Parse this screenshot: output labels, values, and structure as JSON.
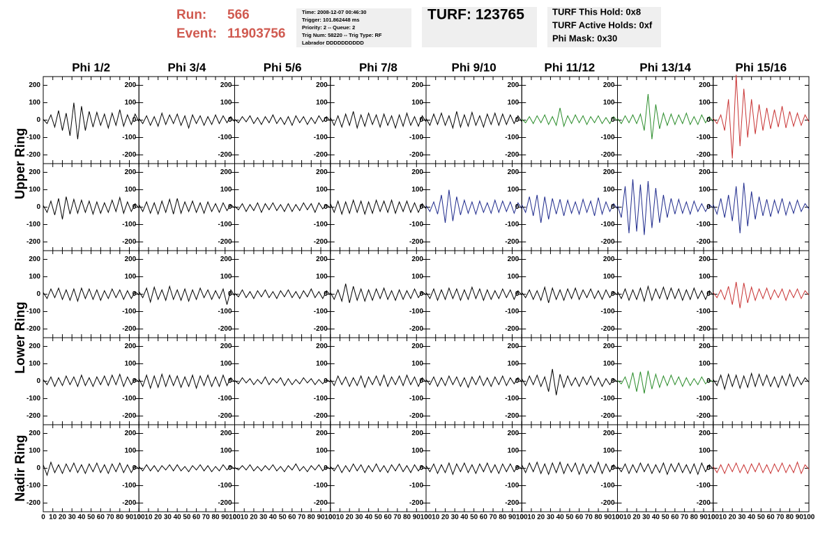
{
  "header": {
    "run_label": "Run:",
    "run": "566",
    "event_label": "Event:",
    "event": "11903756",
    "info": [
      "Time: 2008-12-07 00:46:30",
      "Trigger: 101.862448 ms",
      "Priority: 2 -- Queue: 2",
      "Trig Num: 58220 -- Trig Type: RF",
      "Labrador DDDDDDDDDD"
    ],
    "turf": "TURF: 123765",
    "holds": [
      "TURF This Hold: 0x8",
      "TURF Active Holds: 0xf",
      "Phi Mask: 0x30"
    ]
  },
  "columns": [
    "Phi 1/2",
    "Phi 3/4",
    "Phi 5/6",
    "Phi 7/8",
    "Phi 9/10",
    "Phi 11/12",
    "Phi 13/14",
    "Phi 15/16"
  ],
  "rows": [
    "Upper Ring",
    "Lower Ring",
    "Nadir Ring"
  ],
  "axis": {
    "xlim": [
      0,
      100
    ],
    "ylim": [
      -250,
      250
    ],
    "xticks": [
      0,
      10,
      20,
      30,
      40,
      50,
      60,
      70,
      80,
      90,
      100
    ],
    "yticks": [
      -200,
      -100,
      0,
      100,
      200
    ],
    "x": [
      0,
      4,
      8,
      12,
      16,
      20,
      24,
      28,
      32,
      36,
      40,
      44,
      48,
      52,
      56,
      60,
      64,
      68,
      72,
      76,
      80,
      84,
      88,
      92,
      96,
      100
    ]
  },
  "panels": [
    [
      {
        "color": "#000000",
        "values": [
          5,
          -20,
          30,
          -40,
          55,
          -60,
          40,
          -90,
          100,
          -110,
          80,
          -60,
          50,
          -40,
          45,
          -30,
          35,
          -45,
          40,
          -30,
          60,
          -35,
          30,
          -25,
          35,
          -10
        ]
      },
      {
        "color": "#000000",
        "values": [
          10,
          -20,
          25,
          -30,
          20,
          -35,
          40,
          -25,
          30,
          -20,
          35,
          -30,
          25,
          -45,
          30,
          -20,
          25,
          -30,
          20,
          -25,
          30,
          -20,
          25,
          -15,
          20,
          -10
        ]
      },
      {
        "color": "#000000",
        "values": [
          5,
          -15,
          20,
          -10,
          25,
          -20,
          15,
          -25,
          20,
          -15,
          30,
          -20,
          15,
          -25,
          20,
          -30,
          25,
          -15,
          20,
          -25,
          15,
          -20,
          25,
          -10,
          20,
          -5
        ]
      },
      {
        "color": "#000000",
        "values": [
          15,
          -30,
          25,
          -40,
          35,
          -30,
          50,
          -45,
          30,
          -35,
          40,
          -25,
          30,
          -40,
          35,
          -30,
          25,
          -45,
          30,
          -35,
          40,
          -30,
          20,
          -35,
          25,
          -10
        ]
      },
      {
        "color": "#000000",
        "values": [
          10,
          -30,
          35,
          -25,
          40,
          -30,
          25,
          -45,
          50,
          -40,
          30,
          -35,
          45,
          -30,
          25,
          -40,
          35,
          -25,
          40,
          -30,
          35,
          -25,
          30,
          -20,
          25,
          -10
        ]
      },
      {
        "color": "#2a8c2a",
        "values": [
          5,
          -15,
          20,
          -20,
          25,
          -15,
          30,
          -25,
          20,
          -30,
          70,
          -35,
          25,
          -20,
          30,
          -15,
          25,
          -25,
          20,
          -15,
          25,
          -20,
          15,
          -20,
          20,
          -5
        ]
      },
      {
        "color": "#2a8c2a",
        "values": [
          10,
          -20,
          25,
          -15,
          30,
          -20,
          35,
          -60,
          150,
          -110,
          90,
          -50,
          40,
          -30,
          35,
          -25,
          30,
          -20,
          40,
          -25,
          20,
          -25,
          30,
          -15,
          20,
          -10
        ]
      },
      {
        "color": "#c83232",
        "values": [
          10,
          -20,
          30,
          -60,
          120,
          -220,
          260,
          -150,
          180,
          -100,
          120,
          -80,
          90,
          -60,
          70,
          -50,
          60,
          -40,
          80,
          -45,
          50,
          -35,
          40,
          -30,
          30,
          -10
        ]
      }
    ],
    [
      {
        "color": "#000000",
        "values": [
          10,
          -30,
          35,
          -45,
          50,
          -70,
          60,
          -40,
          45,
          -35,
          40,
          -30,
          35,
          -40,
          30,
          -35,
          25,
          -30,
          40,
          -25,
          55,
          -35,
          30,
          -25,
          20,
          -5
        ]
      },
      {
        "color": "#000000",
        "values": [
          15,
          -25,
          30,
          -35,
          25,
          -40,
          35,
          -30,
          45,
          -40,
          50,
          -35,
          30,
          -25,
          35,
          -30,
          25,
          -35,
          30,
          -25,
          20,
          -30,
          25,
          -20,
          15,
          -5
        ]
      },
      {
        "color": "#000000",
        "values": [
          5,
          -15,
          20,
          -25,
          15,
          -20,
          25,
          -30,
          20,
          -15,
          25,
          -20,
          15,
          -25,
          20,
          -25,
          15,
          -20,
          25,
          -15,
          20,
          -30,
          25,
          -10,
          15,
          -5
        ]
      },
      {
        "color": "#000000",
        "values": [
          20,
          -30,
          35,
          -40,
          30,
          -35,
          40,
          -30,
          35,
          -40,
          30,
          -35,
          40,
          -25,
          35,
          -30,
          40,
          -35,
          30,
          -25,
          35,
          -30,
          25,
          -30,
          20,
          -10
        ]
      },
      {
        "color": "#1e2a8c",
        "values": [
          10,
          -25,
          30,
          -40,
          70,
          -90,
          100,
          -80,
          60,
          -45,
          40,
          -35,
          30,
          -40,
          35,
          -30,
          25,
          -35,
          40,
          -30,
          35,
          -25,
          30,
          -35,
          25,
          -10
        ]
      },
      {
        "color": "#1e2a8c",
        "values": [
          15,
          -30,
          60,
          -50,
          70,
          -90,
          60,
          -70,
          50,
          -40,
          45,
          -50,
          40,
          -35,
          30,
          -40,
          45,
          -30,
          35,
          -50,
          55,
          -40,
          30,
          -25,
          20,
          -10
        ]
      },
      {
        "color": "#1e2a8c",
        "values": [
          10,
          -60,
          120,
          -150,
          160,
          -140,
          130,
          -160,
          150,
          -120,
          110,
          -90,
          70,
          -60,
          50,
          -40,
          45,
          -35,
          30,
          -40,
          35,
          -25,
          20,
          -25,
          15,
          -5
        ]
      },
      {
        "color": "#1e2a8c",
        "values": [
          15,
          -40,
          50,
          -60,
          70,
          -80,
          120,
          -150,
          140,
          -110,
          90,
          -70,
          60,
          -50,
          45,
          -55,
          40,
          -35,
          50,
          -45,
          30,
          -35,
          40,
          -25,
          20,
          -10
        ]
      }
    ],
    [
      {
        "color": "#000000",
        "values": [
          10,
          -25,
          30,
          -20,
          35,
          -30,
          25,
          -35,
          30,
          -40,
          35,
          -25,
          30,
          -30,
          25,
          -35,
          20,
          -25,
          30,
          -20,
          25,
          -30,
          20,
          -25,
          15,
          -5
        ]
      },
      {
        "color": "#000000",
        "values": [
          15,
          -20,
          35,
          -45,
          40,
          -30,
          25,
          -35,
          45,
          -30,
          25,
          -35,
          30,
          -40,
          25,
          -30,
          35,
          -20,
          25,
          -30,
          20,
          -25,
          30,
          -60,
          25,
          -10
        ]
      },
      {
        "color": "#000000",
        "values": [
          5,
          -15,
          25,
          -20,
          15,
          -25,
          20,
          -15,
          25,
          -20,
          15,
          -25,
          20,
          -15,
          25,
          -20,
          15,
          -25,
          20,
          -15,
          30,
          -20,
          15,
          -25,
          20,
          -5
        ]
      },
      {
        "color": "#000000",
        "values": [
          10,
          -30,
          25,
          -40,
          60,
          -50,
          45,
          -35,
          30,
          -40,
          25,
          -35,
          30,
          -25,
          35,
          -30,
          20,
          -35,
          25,
          -30,
          20,
          -25,
          30,
          -20,
          15,
          -5
        ]
      },
      {
        "color": "#000000",
        "values": [
          10,
          -25,
          30,
          -35,
          25,
          -30,
          35,
          -25,
          30,
          -35,
          25,
          -30,
          40,
          -25,
          30,
          -35,
          25,
          -30,
          20,
          -25,
          30,
          -20,
          25,
          -30,
          20,
          -5
        ]
      },
      {
        "color": "#000000",
        "values": [
          10,
          -20,
          25,
          -30,
          20,
          -35,
          40,
          -50,
          35,
          -30,
          25,
          -35,
          30,
          -25,
          35,
          -30,
          25,
          -20,
          30,
          -25,
          20,
          -30,
          25,
          -20,
          15,
          -5
        ]
      },
      {
        "color": "#000000",
        "values": [
          15,
          -25,
          30,
          -35,
          25,
          -30,
          35,
          -40,
          45,
          -35,
          30,
          -25,
          40,
          -30,
          35,
          -25,
          30,
          -35,
          25,
          -30,
          35,
          -25,
          20,
          -30,
          20,
          -5
        ]
      },
      {
        "color": "#c83232",
        "values": [
          10,
          -20,
          25,
          -30,
          45,
          -60,
          70,
          -80,
          65,
          -50,
          40,
          -35,
          30,
          -25,
          35,
          -30,
          25,
          -20,
          30,
          -35,
          25,
          -20,
          30,
          -25,
          20,
          -5
        ]
      }
    ],
    [
      {
        "color": "#000000",
        "values": [
          10,
          -20,
          25,
          -30,
          20,
          -25,
          30,
          -20,
          25,
          -30,
          35,
          -25,
          20,
          -30,
          25,
          -20,
          30,
          -25,
          35,
          -20,
          40,
          -30,
          25,
          -20,
          15,
          -5
        ]
      },
      {
        "color": "#000000",
        "values": [
          15,
          -30,
          35,
          -40,
          30,
          -35,
          40,
          -30,
          35,
          -25,
          30,
          -35,
          25,
          -30,
          35,
          -40,
          30,
          -25,
          35,
          -30,
          25,
          -30,
          35,
          -25,
          20,
          -5
        ]
      },
      {
        "color": "#000000",
        "values": [
          5,
          -15,
          20,
          -10,
          15,
          -20,
          10,
          -15,
          25,
          -20,
          15,
          -10,
          20,
          -25,
          15,
          -20,
          10,
          -15,
          20,
          -10,
          15,
          -20,
          10,
          -15,
          10,
          -5
        ]
      },
      {
        "color": "#000000",
        "values": [
          10,
          -25,
          30,
          -20,
          25,
          -30,
          20,
          -25,
          30,
          -35,
          25,
          -20,
          30,
          -25,
          35,
          -30,
          25,
          -20,
          30,
          -25,
          35,
          -20,
          25,
          -30,
          20,
          -5
        ]
      },
      {
        "color": "#000000",
        "values": [
          10,
          -20,
          25,
          -30,
          20,
          -25,
          30,
          -20,
          25,
          -30,
          20,
          -35,
          25,
          -20,
          30,
          -25,
          20,
          -30,
          25,
          -20,
          30,
          -25,
          20,
          -15,
          20,
          -5
        ]
      },
      {
        "color": "#000000",
        "values": [
          15,
          -25,
          30,
          -20,
          35,
          -30,
          25,
          -60,
          70,
          -80,
          40,
          -35,
          30,
          -25,
          20,
          -30,
          25,
          -20,
          30,
          -25,
          20,
          -30,
          15,
          -20,
          15,
          -5
        ]
      },
      {
        "color": "#2a8c2a",
        "values": [
          5,
          -15,
          25,
          -40,
          50,
          -60,
          55,
          -70,
          60,
          -45,
          40,
          -35,
          30,
          -25,
          35,
          -20,
          25,
          -30,
          20,
          -25,
          15,
          -20,
          25,
          -15,
          10,
          -5
        ]
      },
      {
        "color": "#000000",
        "values": [
          10,
          -25,
          35,
          -45,
          40,
          -30,
          35,
          -40,
          30,
          -35,
          45,
          -30,
          40,
          -25,
          35,
          -30,
          25,
          -35,
          30,
          -25,
          40,
          -30,
          25,
          -20,
          20,
          -5
        ]
      }
    ],
    [
      {
        "color": "#000000",
        "values": [
          20,
          -40,
          35,
          -25,
          20,
          -30,
          25,
          -20,
          30,
          -25,
          20,
          -30,
          25,
          -20,
          30,
          -25,
          20,
          -30,
          25,
          -20,
          30,
          -25,
          20,
          -25,
          15,
          -5
        ]
      },
      {
        "color": "#000000",
        "values": [
          10,
          -15,
          20,
          -15,
          15,
          -20,
          15,
          -10,
          20,
          -15,
          20,
          -15,
          10,
          -20,
          15,
          -10,
          20,
          -15,
          15,
          -20,
          10,
          -15,
          20,
          -10,
          15,
          -5
        ]
      },
      {
        "color": "#000000",
        "values": [
          5,
          -10,
          15,
          -10,
          20,
          -15,
          10,
          -15,
          15,
          -10,
          20,
          -15,
          10,
          -20,
          15,
          -10,
          25,
          -15,
          10,
          -20,
          15,
          -10,
          20,
          -15,
          10,
          -5
        ]
      },
      {
        "color": "#000000",
        "values": [
          10,
          -15,
          20,
          -25,
          15,
          -20,
          25,
          -15,
          20,
          -25,
          15,
          -20,
          25,
          -20,
          15,
          -25,
          20,
          -15,
          25,
          -20,
          15,
          -25,
          20,
          -15,
          15,
          -5
        ]
      },
      {
        "color": "#000000",
        "values": [
          15,
          -20,
          25,
          -30,
          20,
          -25,
          30,
          -35,
          25,
          -20,
          30,
          -25,
          20,
          -30,
          25,
          -20,
          30,
          -25,
          20,
          -30,
          25,
          -20,
          25,
          -20,
          15,
          -5
        ]
      },
      {
        "color": "#000000",
        "values": [
          20,
          -25,
          30,
          -20,
          35,
          -30,
          25,
          -35,
          30,
          -25,
          35,
          -30,
          25,
          -20,
          30,
          -35,
          25,
          -30,
          20,
          -25,
          35,
          -30,
          25,
          -20,
          20,
          -5
        ]
      },
      {
        "color": "#000000",
        "values": [
          10,
          -20,
          25,
          -30,
          20,
          -25,
          30,
          -20,
          25,
          -30,
          20,
          -25,
          30,
          -35,
          25,
          -20,
          30,
          -25,
          20,
          -30,
          25,
          -35,
          30,
          -20,
          20,
          -5
        ]
      },
      {
        "color": "#c83232",
        "values": [
          10,
          -25,
          20,
          -30,
          25,
          -20,
          30,
          -25,
          20,
          -30,
          25,
          -20,
          30,
          -25,
          20,
          -30,
          25,
          -20,
          30,
          -25,
          20,
          -25,
          35,
          -30,
          20,
          -5
        ]
      }
    ]
  ]
}
